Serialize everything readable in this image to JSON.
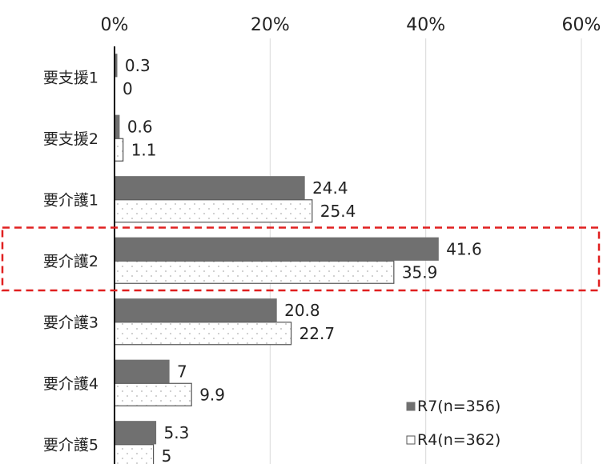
{
  "chart_data": {
    "type": "bar",
    "orientation": "horizontal",
    "categories": [
      "要支援1",
      "要支援2",
      "要介護1",
      "要介護2",
      "要介護3",
      "要介護4",
      "要介護5"
    ],
    "series": [
      {
        "name": "R7(n=356)",
        "values": [
          0.3,
          0.6,
          24.4,
          41.6,
          20.8,
          7,
          5.3
        ],
        "fill": "solid",
        "color": "#707070"
      },
      {
        "name": "R4(n=362)",
        "values": [
          0,
          1.1,
          25.4,
          35.9,
          22.7,
          9.9,
          5
        ],
        "fill": "dotted",
        "color": "#ffffff"
      }
    ],
    "value_labels": [
      [
        "0.3",
        "0.6",
        "24.4",
        "41.6",
        "20.8",
        "7",
        "5.3"
      ],
      [
        "0",
        "1.1",
        "25.4",
        "35.9",
        "22.7",
        "9.9",
        "5"
      ]
    ],
    "x_ticks": [
      "0%",
      "20%",
      "40%",
      "60%"
    ],
    "xlim": [
      0,
      60
    ],
    "axis_position": "top",
    "grid": true,
    "legend_position": "bottom-right",
    "highlight_category": "要介護2",
    "highlight_color": "#e02020"
  }
}
